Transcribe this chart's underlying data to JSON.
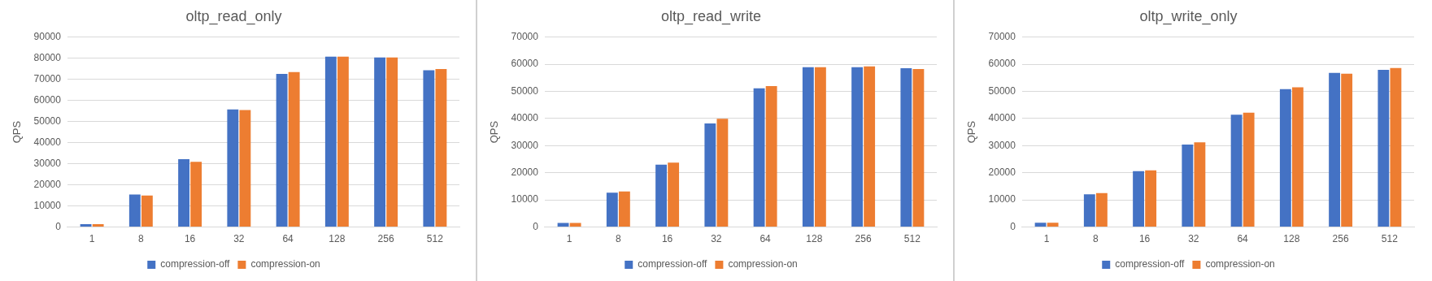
{
  "chart_data": [
    {
      "type": "bar",
      "title": "oltp_read_only",
      "ylabel": "QPS",
      "categories": [
        "1",
        "8",
        "16",
        "32",
        "64",
        "128",
        "256",
        "512"
      ],
      "series": [
        {
          "name": "compression-off",
          "color": "#4472c4",
          "values": [
            1400,
            15400,
            32200,
            55700,
            72500,
            80700,
            80300,
            74300
          ]
        },
        {
          "name": "compression-on",
          "color": "#ed7d31",
          "values": [
            1400,
            14900,
            30900,
            55400,
            73400,
            80700,
            80300,
            74800
          ]
        }
      ],
      "ylim": [
        0,
        90000
      ],
      "yticks": [
        0,
        10000,
        20000,
        30000,
        40000,
        50000,
        60000,
        70000,
        80000,
        90000
      ],
      "grid": "y",
      "legend": "bottom"
    },
    {
      "type": "bar",
      "title": "oltp_read_write",
      "ylabel": "QPS",
      "categories": [
        "1",
        "8",
        "16",
        "32",
        "64",
        "128",
        "256",
        "512"
      ],
      "series": [
        {
          "name": "compression-off",
          "color": "#4472c4",
          "values": [
            1500,
            12700,
            23000,
            38200,
            51100,
            58900,
            58900,
            58500
          ]
        },
        {
          "name": "compression-on",
          "color": "#ed7d31",
          "values": [
            1500,
            13100,
            23700,
            39900,
            51900,
            58900,
            59200,
            58200
          ]
        }
      ],
      "ylim": [
        0,
        70000
      ],
      "yticks": [
        0,
        10000,
        20000,
        30000,
        40000,
        50000,
        60000,
        70000
      ],
      "grid": "y",
      "legend": "bottom"
    },
    {
      "type": "bar",
      "title": "oltp_write_only",
      "ylabel": "QPS",
      "categories": [
        "1",
        "8",
        "16",
        "32",
        "64",
        "128",
        "256",
        "512"
      ],
      "series": [
        {
          "name": "compression-off",
          "color": "#4472c4",
          "values": [
            1600,
            12100,
            20600,
            30400,
            41400,
            50800,
            56800,
            57900
          ]
        },
        {
          "name": "compression-on",
          "color": "#ed7d31",
          "values": [
            1600,
            12500,
            20900,
            31200,
            42100,
            51500,
            56500,
            58600
          ]
        }
      ],
      "ylim": [
        0,
        70000
      ],
      "yticks": [
        0,
        10000,
        20000,
        30000,
        40000,
        50000,
        60000,
        70000
      ],
      "grid": "y",
      "legend": "bottom"
    }
  ]
}
